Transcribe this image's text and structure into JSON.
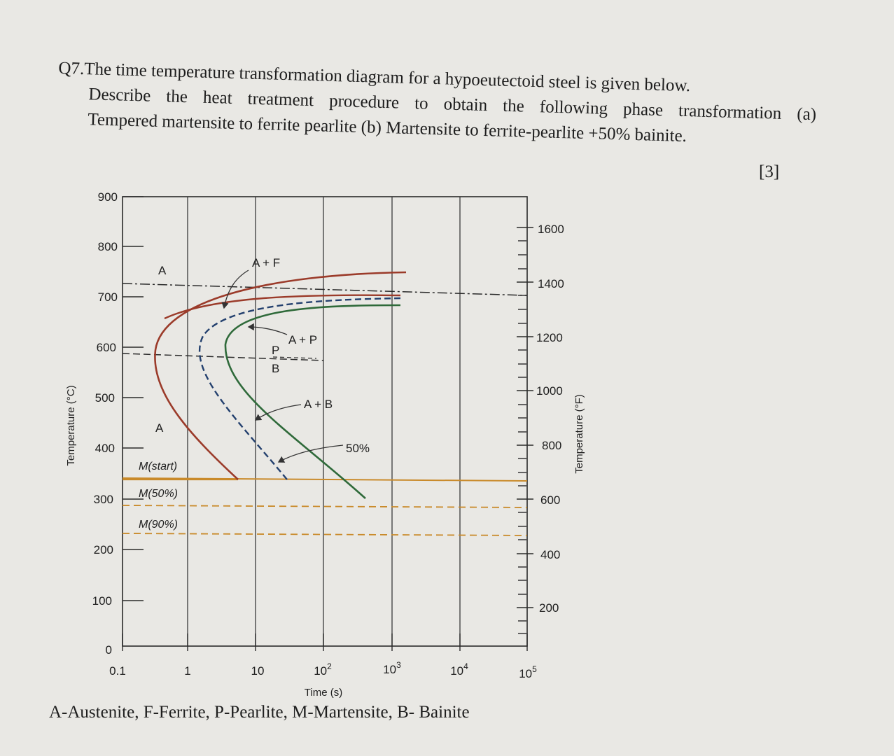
{
  "question": {
    "number": "Q7.",
    "line1": "The time temperature transformation diagram for a hypoeutectoid steel is given below.",
    "line2": "Describe the heat treatment procedure to obtain the following phase transformation (a)",
    "line3": "Tempered martensite to ferrite pearlite (b) Martensite to ferrite-pearlite +50% bainite.",
    "marks": "[3]"
  },
  "diagram": {
    "y_axis_left": {
      "title": "Temperature (°C)",
      "ticks": [
        "900",
        "800",
        "700",
        "600",
        "500",
        "400",
        "300",
        "200",
        "100",
        "0"
      ]
    },
    "y_axis_right": {
      "title": "Temperature (°F)",
      "ticks": [
        "1600",
        "1400",
        "1200",
        "1000",
        "800",
        "600",
        "400",
        "200"
      ]
    },
    "x_axis": {
      "title": "Time (s)",
      "ticks": [
        "0.1",
        "1",
        "10",
        "10",
        "10",
        "10",
        "10"
      ],
      "exponents": [
        "",
        "",
        "",
        "2",
        "3",
        "4",
        "5"
      ]
    },
    "regions": {
      "a_upper": "A",
      "a_plus_f": "A + F",
      "a_plus_p": "A + P",
      "p": "P",
      "b": "B",
      "a_plus_b": "A + B",
      "a_lower": "A",
      "fifty": "50%"
    },
    "martensite_lines": {
      "start": "M(start)",
      "fifty": "M(50%)",
      "ninety": "M(90%)"
    },
    "colors": {
      "start_curve": "#9b3b2a",
      "fifty_curve": "#23406e",
      "finish_curve": "#2f6a3a",
      "m_line": "#c98a2a"
    }
  },
  "legend": "A-Austenite, F-Ferrite, P-Pearlite, M-Martensite, B- Bainite"
}
